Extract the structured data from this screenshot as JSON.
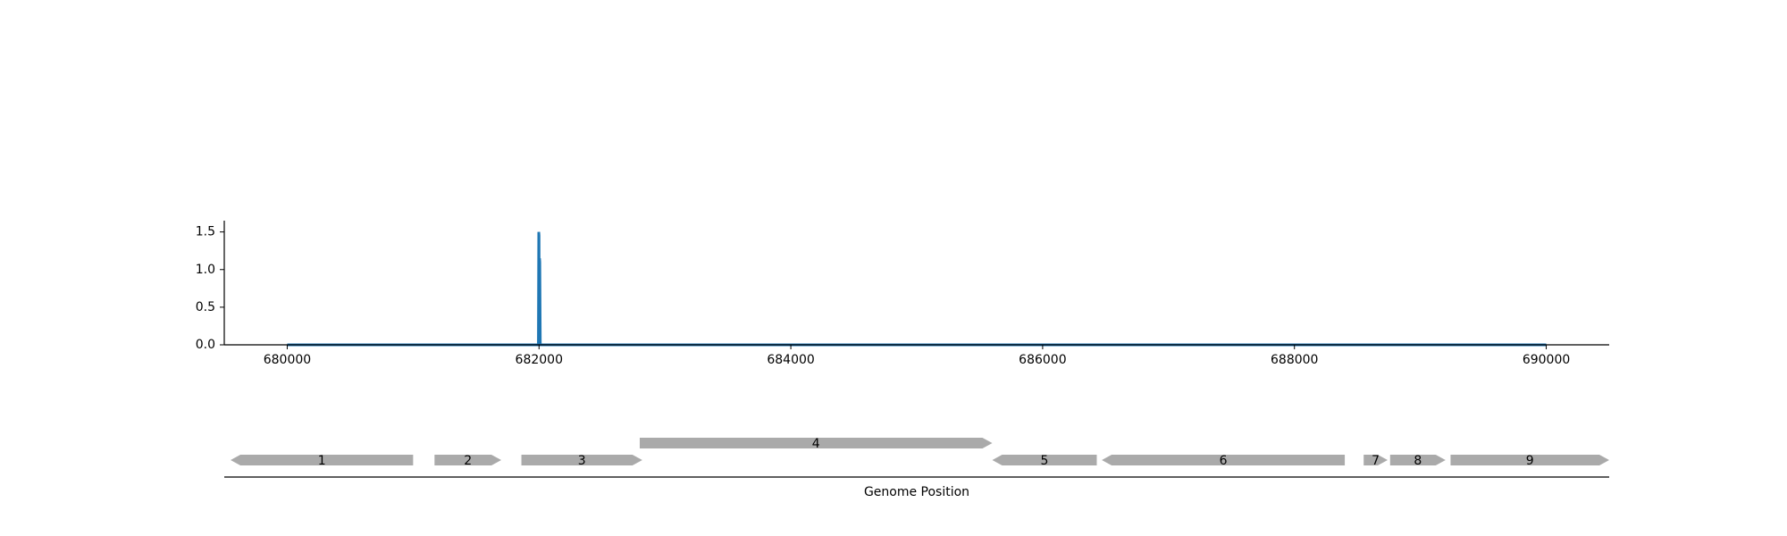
{
  "chart_data": [
    {
      "type": "line",
      "title": "",
      "xlabel": "",
      "ylabel": "",
      "xlim": [
        679500,
        690500
      ],
      "ylim": [
        0,
        1.65
      ],
      "xticks": [
        680000,
        682000,
        684000,
        686000,
        688000,
        690000
      ],
      "yticks": [
        0.0,
        0.5,
        1.0,
        1.5
      ],
      "xtick_labels": [
        "680000",
        "682000",
        "684000",
        "686000",
        "688000",
        "690000"
      ],
      "ytick_labels": [
        "0.0",
        "0.5",
        "1.0",
        "1.5"
      ],
      "grid": false,
      "series": [
        {
          "color": "#1f77b4",
          "x": [
            680000,
            681995,
            681998,
            682000,
            682002,
            682004,
            682006,
            682010,
            690000
          ],
          "y": [
            0,
            0,
            1.5,
            1.45,
            0,
            1.15,
            1.1,
            0,
            0
          ]
        }
      ]
    },
    {
      "type": "gene-track",
      "xlabel": "Genome Position",
      "xlim": [
        679500,
        690500
      ],
      "genes": [
        {
          "label": "1",
          "start": 679550,
          "end": 681000,
          "strand": "-",
          "row": 0
        },
        {
          "label": "2",
          "start": 681170,
          "end": 681700,
          "strand": "+",
          "row": 0
        },
        {
          "label": "3",
          "start": 681860,
          "end": 682820,
          "strand": "+",
          "row": 0
        },
        {
          "label": "4",
          "start": 682800,
          "end": 685600,
          "strand": "+",
          "row": 1
        },
        {
          "label": "5",
          "start": 685600,
          "end": 686430,
          "strand": "-",
          "row": 0
        },
        {
          "label": "6",
          "start": 686470,
          "end": 688400,
          "strand": "-",
          "row": 0
        },
        {
          "label": "7",
          "start": 688550,
          "end": 688740,
          "strand": "+",
          "row": 0
        },
        {
          "label": "8",
          "start": 688760,
          "end": 689200,
          "strand": "+",
          "row": 0
        },
        {
          "label": "9",
          "start": 689240,
          "end": 690500,
          "strand": "+",
          "row": 0
        }
      ],
      "gene_color": "#aaaaaa"
    }
  ]
}
